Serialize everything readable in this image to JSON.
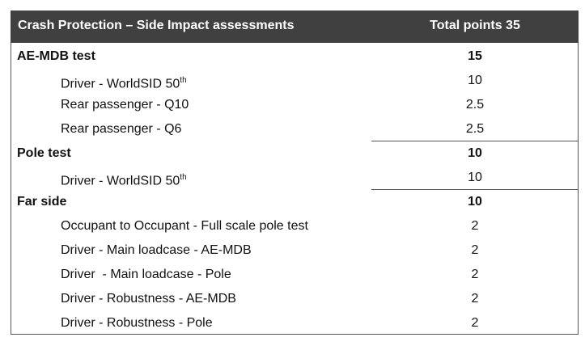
{
  "header": {
    "title": "Crash Protection – Side Impact assessments",
    "points": "Total points 35"
  },
  "sections": [
    {
      "name": "AE-MDB test",
      "points": "15",
      "rows": [
        {
          "label": "Driver - WorldSID 50",
          "sup": "th",
          "points": "10"
        },
        {
          "label": "Rear passenger - Q10",
          "points": "2.5"
        },
        {
          "label": "Rear passenger - Q6",
          "points": "2.5"
        }
      ]
    },
    {
      "name": "Pole test",
      "points": "10",
      "rows": [
        {
          "label": "Driver - WorldSID 50",
          "sup": "th",
          "points": "10"
        }
      ]
    },
    {
      "name": "Far side",
      "points": "10",
      "rows": [
        {
          "label": "Occupant to Occupant - Full scale pole test",
          "points": "2"
        },
        {
          "label": "Driver - Main loadcase - AE-MDB",
          "points": "2"
        },
        {
          "label": "Driver  - Main loadcase - Pole",
          "points": "2"
        },
        {
          "label": "Driver - Robustness - AE-MDB",
          "points": "2"
        },
        {
          "label": "Driver - Robustness - Pole",
          "points": "2"
        }
      ]
    }
  ]
}
